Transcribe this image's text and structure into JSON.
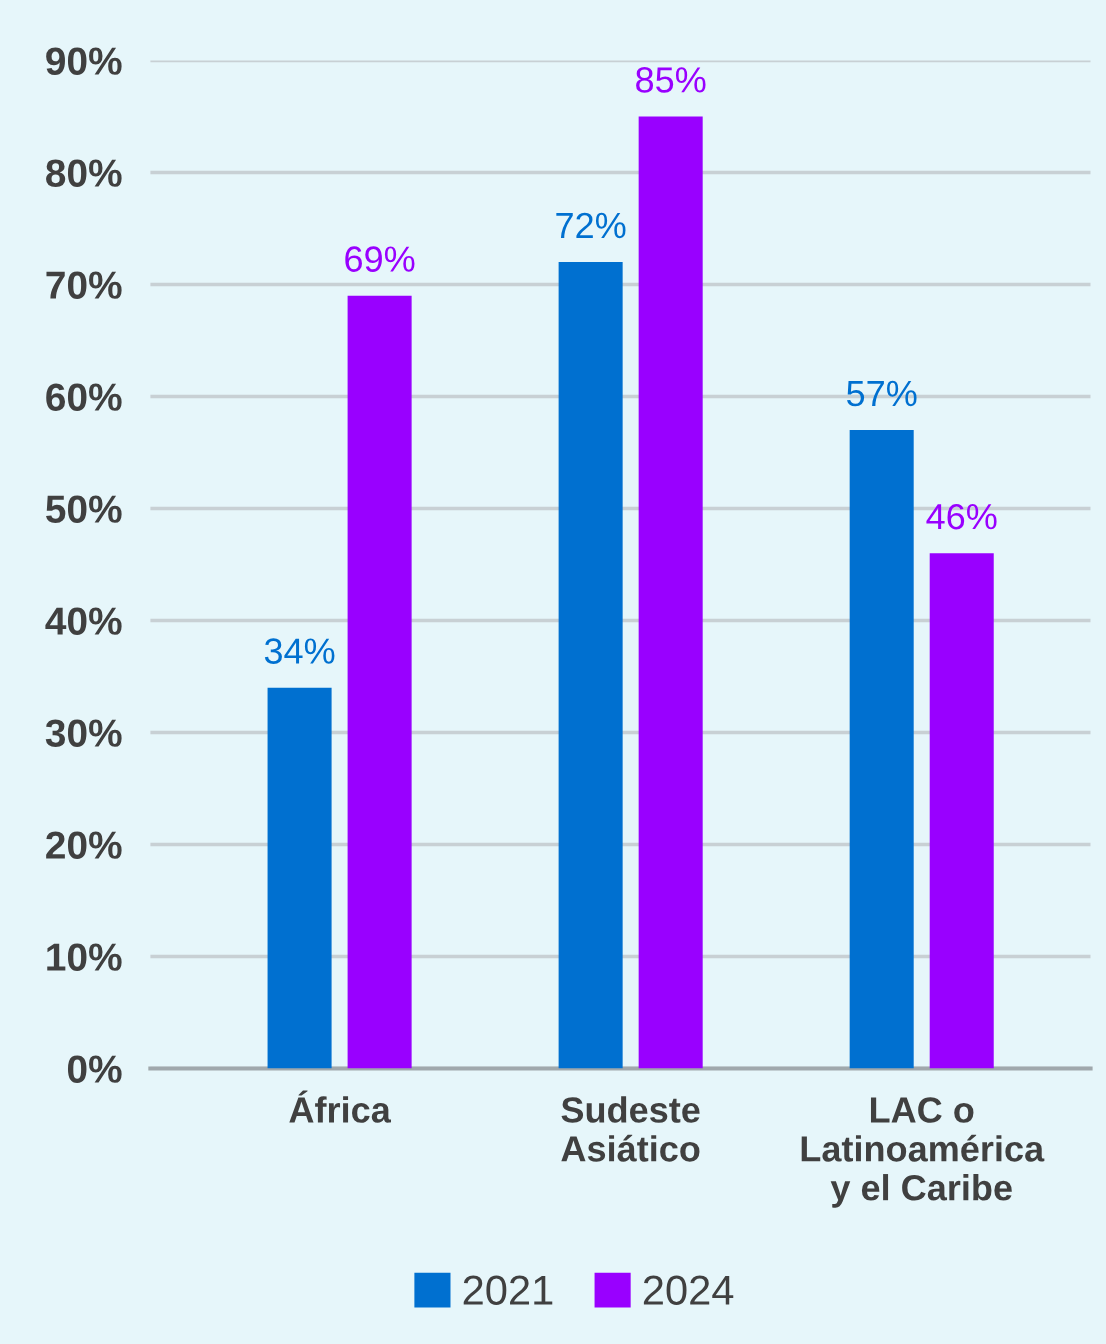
{
  "chart_data": {
    "type": "bar",
    "categories": [
      "África",
      "Sudeste\nAsiático",
      "LAC o\nLatinoamérica\ny el Caribe"
    ],
    "series": [
      {
        "name": "2021",
        "color": "#0070d0",
        "values": [
          34,
          72,
          57
        ],
        "value_labels": [
          "34%",
          "72%",
          "57%"
        ]
      },
      {
        "name": "2024",
        "color": "#9900ff",
        "values": [
          69,
          85,
          46
        ],
        "value_labels": [
          "69%",
          "85%",
          "46%"
        ]
      }
    ],
    "ylim": [
      0,
      90
    ],
    "yticks": [
      {
        "value": 0,
        "label": "0%"
      },
      {
        "value": 10,
        "label": "10%"
      },
      {
        "value": 20,
        "label": "20%"
      },
      {
        "value": 30,
        "label": "30%"
      },
      {
        "value": 40,
        "label": "40%"
      },
      {
        "value": 50,
        "label": "50%"
      },
      {
        "value": 60,
        "label": "60%"
      },
      {
        "value": 70,
        "label": "70%"
      },
      {
        "value": 80,
        "label": "80%"
      },
      {
        "value": 90,
        "label": "90%"
      }
    ],
    "grid": "y",
    "legend": "bottom"
  }
}
